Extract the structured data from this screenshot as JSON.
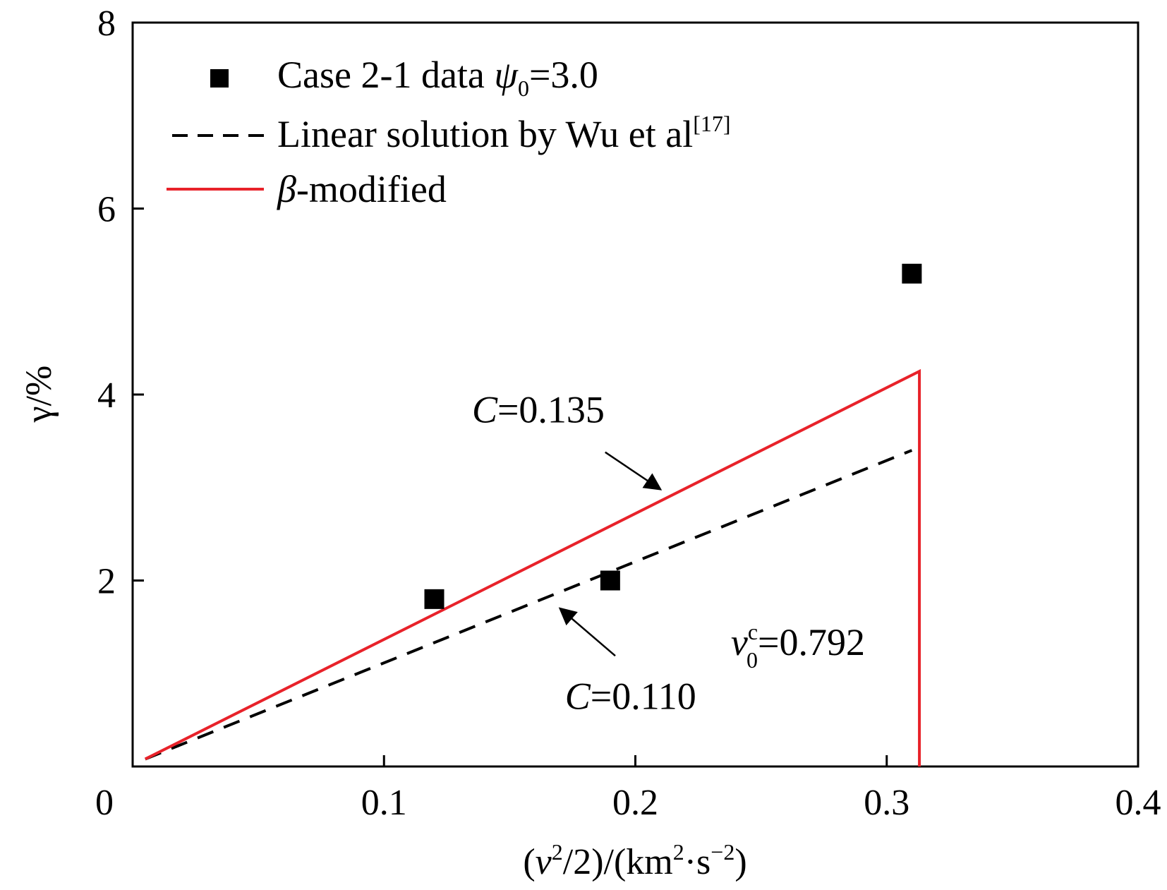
{
  "chart_data": {
    "type": "scatter",
    "xlim": [
      0,
      0.4
    ],
    "ylim": [
      0,
      8
    ],
    "x_ticks": [
      0,
      0.1,
      0.2,
      0.3,
      0.4
    ],
    "x_tick_labels": [
      "0",
      "0.1",
      "0.2",
      "0.3",
      "0.4"
    ],
    "y_ticks": [
      2,
      4,
      6,
      8
    ],
    "y_tick_labels": [
      "2",
      "4",
      "6",
      "8"
    ],
    "xlabel": {
      "open": "(",
      "var": "v",
      "sup1": "2",
      "mid": "/2)/(km",
      "sup2": "2",
      "dot": "·s",
      "sup3": "−2",
      "close": ")"
    },
    "ylabel": "γ/%",
    "grid": false,
    "legend_position": "top-left",
    "series": [
      {
        "kind": "scatter",
        "color": "#000000",
        "legend": {
          "prefix": "Case 2-1 data ",
          "var": "ψ",
          "sub": "0",
          "suffix": "=3.0"
        },
        "points": [
          {
            "x": 0.12,
            "y": 1.8
          },
          {
            "x": 0.19,
            "y": 2.0
          },
          {
            "x": 0.31,
            "y": 5.3
          }
        ]
      },
      {
        "kind": "line-dashed",
        "color": "#000000",
        "legend": {
          "text": "Linear solution by Wu et al",
          "sup": "[17]"
        },
        "points": [
          {
            "x": 0.005,
            "y": 0.08
          },
          {
            "x": 0.31,
            "y": 3.4
          }
        ]
      },
      {
        "kind": "line",
        "color": "#e8222a",
        "legend": {
          "var": "β",
          "text": "-modified"
        },
        "points": [
          {
            "x": 0.005,
            "y": 0.08
          },
          {
            "x": 0.313,
            "y": 4.25
          },
          {
            "x": 0.313,
            "y": 0.0
          }
        ]
      }
    ],
    "annotations": [
      {
        "id": "c135",
        "var": "C",
        "text": "=0.135",
        "x": 0.135,
        "y": 3.7,
        "arrow_from": [
          0.188,
          3.38
        ],
        "arrow_to": [
          0.21,
          2.98
        ]
      },
      {
        "id": "c110",
        "var": "C",
        "text": "=0.110",
        "x": 0.172,
        "y": 0.62,
        "arrow_from": [
          0.192,
          1.19
        ],
        "arrow_to": [
          0.17,
          1.7
        ]
      },
      {
        "id": "v0c",
        "var": "v",
        "sup": "c",
        "sub": "0",
        "text": "=0.792",
        "x": 0.238,
        "y": 1.2
      }
    ]
  }
}
